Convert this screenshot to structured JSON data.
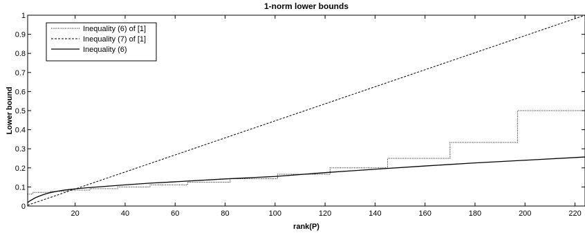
{
  "chart_data": {
    "type": "line",
    "title": "1-norm lower bounds",
    "xlabel": "rank(P)",
    "ylabel": "Lower bound",
    "xlim": [
      1,
      224
    ],
    "ylim": [
      0,
      1
    ],
    "xticks": [
      20,
      40,
      60,
      80,
      100,
      120,
      140,
      160,
      180,
      200,
      220
    ],
    "yticks": [
      0,
      0.1,
      0.2,
      0.3,
      0.4,
      0.5,
      0.6,
      0.7,
      0.8,
      0.9,
      1
    ],
    "ytick_labels": [
      "0",
      "0.1",
      "0.2",
      "0.3",
      "0.4",
      "0.5",
      "0.6",
      "0.7",
      "0.8",
      "0.9",
      "1"
    ],
    "grid": false,
    "legend_position": "top-left",
    "series": [
      {
        "name": "Inequality (6) of [1]",
        "style": "dotted",
        "step": true,
        "x": [
          1,
          3,
          10,
          17,
          26,
          37,
          50,
          65,
          82,
          101,
          122,
          145,
          170,
          197,
          224
        ],
        "y": [
          0.0625,
          0.0714,
          0.0769,
          0.0833,
          0.0909,
          0.1,
          0.1111,
          0.125,
          0.1429,
          0.1667,
          0.2,
          0.25,
          0.3333,
          0.5,
          1.0
        ]
      },
      {
        "name": "Inequality (7) of [1]",
        "style": "dashed",
        "step": false,
        "x": [
          1,
          224
        ],
        "y": [
          0.0045,
          1.0
        ]
      },
      {
        "name": "Inequality (6)",
        "style": "solid",
        "step": false,
        "x": [
          1,
          2,
          4,
          6,
          8,
          10,
          13,
          16,
          20,
          25,
          30,
          40,
          50,
          60,
          80,
          100,
          120,
          140,
          160,
          180,
          200,
          224
        ],
        "y": [
          0.018,
          0.028,
          0.043,
          0.054,
          0.063,
          0.07,
          0.078,
          0.084,
          0.09,
          0.096,
          0.101,
          0.111,
          0.12,
          0.127,
          0.142,
          0.155,
          0.175,
          0.193,
          0.21,
          0.226,
          0.24,
          0.257
        ]
      }
    ]
  }
}
